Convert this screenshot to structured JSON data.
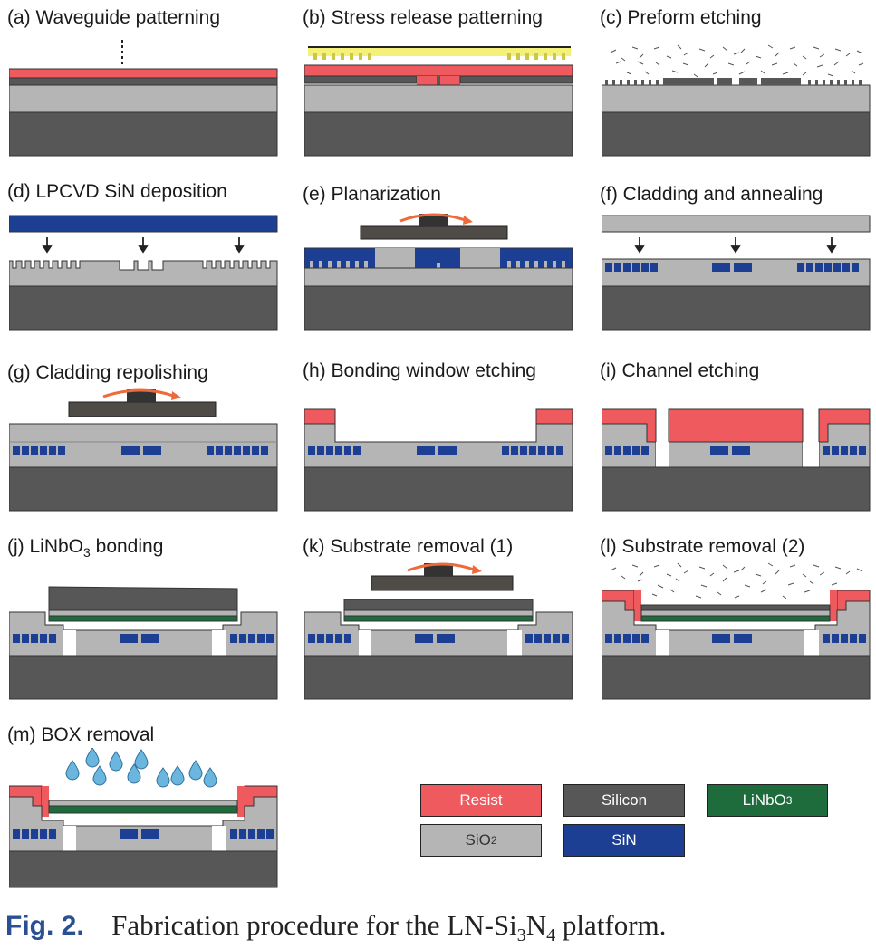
{
  "panels": [
    {
      "id": "a",
      "title": "(a) Waveguide patterning"
    },
    {
      "id": "b",
      "title": "(b) Stress release patterning"
    },
    {
      "id": "c",
      "title": "(c) Preform etching"
    },
    {
      "id": "d",
      "title": "(d) LPCVD SiN deposition"
    },
    {
      "id": "e",
      "title": "(e) Planarization"
    },
    {
      "id": "f",
      "title": "(f) Cladding and annealing"
    },
    {
      "id": "g",
      "title": "(g) Cladding repolishing"
    },
    {
      "id": "h",
      "title": "(h) Bonding window etching"
    },
    {
      "id": "i",
      "title": "(i) Channel etching"
    },
    {
      "id": "j",
      "title": "(j) LiNbO3 bonding"
    },
    {
      "id": "k",
      "title": "(k) Substrate removal (1)"
    },
    {
      "id": "l",
      "title": "(l) Substrate removal (2)"
    },
    {
      "id": "m",
      "title": "(m) BOX removal"
    }
  ],
  "legend": [
    {
      "label": "Resist",
      "color": "#ee5a5e",
      "text_color": "#ffffff"
    },
    {
      "label": "Silicon",
      "color": "#575757",
      "text_color": "#ffffff"
    },
    {
      "label": "LiNbO3",
      "color": "#1e6b3c",
      "text_color": "#ffffff"
    },
    {
      "label": "SiO2",
      "color": "#b5b5b5",
      "text_color": "#333333"
    },
    {
      "label": "SiN",
      "color": "#1c3f94",
      "text_color": "#ffffff"
    }
  ],
  "caption": {
    "fig_label": "Fig. 2.",
    "text": "Fabrication procedure for the LN-Si3N4 platform."
  },
  "colors": {
    "resist": "#ee5a5e",
    "silicon": "#575757",
    "lithium_niobate": "#1e6b3c",
    "oxide": "#b5b5b5",
    "nitride": "#1c3f94",
    "polisher": "#4f4b47",
    "motion_arrow": "#ee6a3a",
    "mask": "#f4f07a",
    "water": "#6ab6de"
  }
}
